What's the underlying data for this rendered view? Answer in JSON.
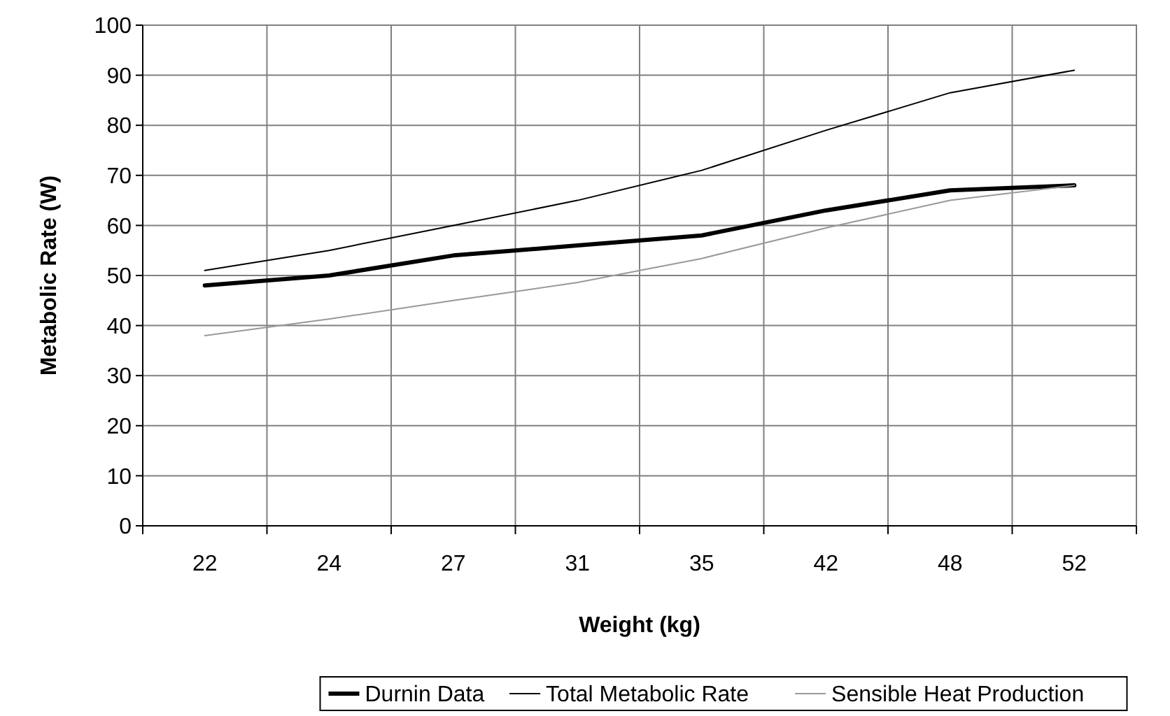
{
  "chart_data": {
    "type": "line",
    "xlabel": "Weight (kg)",
    "ylabel": "Metabolic Rate (W)",
    "categories": [
      "22",
      "24",
      "27",
      "31",
      "35",
      "42",
      "48",
      "52"
    ],
    "ylim": [
      0,
      100
    ],
    "yticks": [
      0,
      10,
      20,
      30,
      40,
      50,
      60,
      70,
      80,
      90,
      100
    ],
    "grid": true,
    "legend": "bottom",
    "marker": "none",
    "line_style": "solid",
    "series": [
      {
        "name": "Durnin Data",
        "color": "#000000",
        "values": [
          48,
          50,
          54,
          56,
          58,
          63,
          67,
          68
        ]
      },
      {
        "name": "Total Metabolic Rate",
        "color": "#000000",
        "values": [
          51,
          55,
          60,
          65,
          71,
          79,
          86.5,
          91
        ]
      },
      {
        "name": "Sensible Heat Production",
        "color": "#999999",
        "values": [
          38,
          41.3,
          45,
          48.6,
          53.4,
          59.5,
          65,
          68
        ]
      }
    ]
  }
}
